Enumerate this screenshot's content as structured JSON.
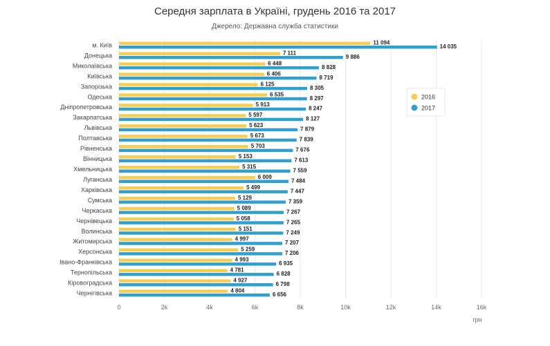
{
  "chart_data": {
    "type": "bar",
    "orientation": "horizontal",
    "title": "Середня зарплата в Україні, грудень 2016 та 2017",
    "subtitle": "Джерело: Державна служба статистики",
    "xlabel": "грн",
    "ylabel": "",
    "xlim": [
      0,
      16000
    ],
    "x_ticks": [
      0,
      2000,
      4000,
      6000,
      8000,
      10000,
      12000,
      14000,
      16000
    ],
    "x_tick_labels": [
      "0",
      "2k",
      "4k",
      "6k",
      "8k",
      "10k",
      "12k",
      "14k",
      "16k"
    ],
    "grid": "vertical",
    "legend_position": "right",
    "categories": [
      "м. Київ",
      "Донецька",
      "Миколаївська",
      "Київська",
      "Запорізька",
      "Одеська",
      "Дніпропетровська",
      "Закарпатська",
      "Львівська",
      "Полтавська",
      "Рівненська",
      "Вінницька",
      "Хмельницька",
      "Луганська",
      "Харківська",
      "Сумська",
      "Черкаська",
      "Чернівецька",
      "Волинська",
      "Житомирська",
      "Херсонська",
      "Івано-Франківська",
      "Тернопільська",
      "Кіровоградська",
      "Чернігівська"
    ],
    "series": [
      {
        "name": "2016",
        "color": "#f6cd4f",
        "values": [
          11094,
          7111,
          6448,
          6406,
          6125,
          6535,
          5913,
          5597,
          5623,
          5673,
          5703,
          5153,
          5315,
          6009,
          5499,
          5129,
          5089,
          5058,
          5151,
          4997,
          5259,
          4993,
          4781,
          4927,
          4804
        ],
        "value_labels": [
          "11 094",
          "7 111",
          "6 448",
          "6 406",
          "6 125",
          "6 535",
          "5 913",
          "5 597",
          "5 623",
          "5 673",
          "5 703",
          "5 153",
          "5 315",
          "6 009",
          "5 499",
          "5 129",
          "5 089",
          "5 058",
          "5 151",
          "4 997",
          "5 259",
          "4 993",
          "4 781",
          "4 927",
          "4 804"
        ]
      },
      {
        "name": "2017",
        "color": "#2f9fd0",
        "values": [
          14035,
          9886,
          8828,
          8719,
          8305,
          8297,
          8247,
          8127,
          7879,
          7839,
          7676,
          7613,
          7559,
          7484,
          7447,
          7359,
          7267,
          7265,
          7249,
          7207,
          7206,
          6935,
          6828,
          6798,
          6656
        ],
        "value_labels": [
          "14 035",
          "9 886",
          "8 828",
          "8 719",
          "8 305",
          "8 297",
          "8 247",
          "8 127",
          "7 879",
          "7 839",
          "7 676",
          "7 613",
          "7 559",
          "7 484",
          "7 447",
          "7 359",
          "7 267",
          "7 265",
          "7 249",
          "7 207",
          "7 206",
          "6 935",
          "6 828",
          "6 798",
          "6 656"
        ]
      }
    ]
  }
}
